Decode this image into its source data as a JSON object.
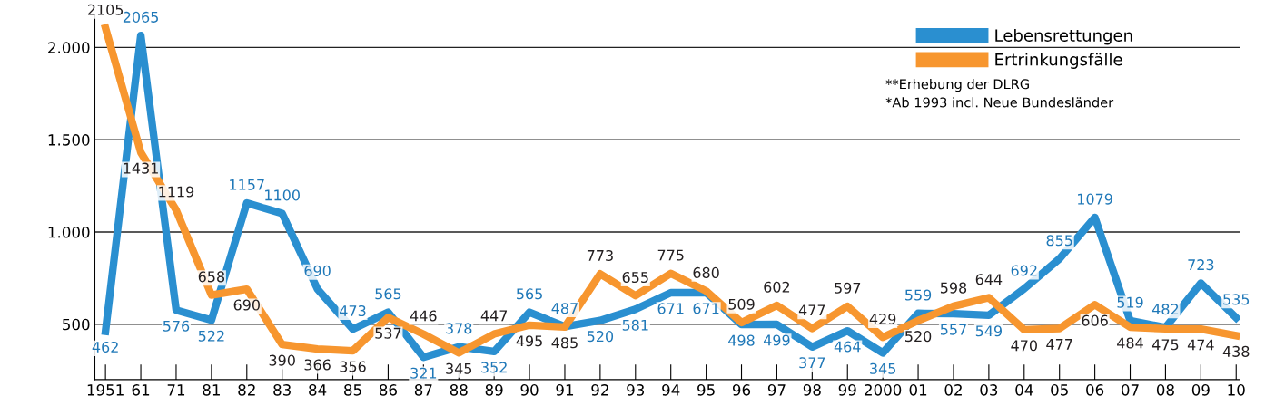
{
  "chart_data": {
    "type": "line",
    "categories": [
      "1951",
      "61",
      "71",
      "81",
      "82",
      "83",
      "84",
      "85",
      "86",
      "87",
      "88",
      "89",
      "90",
      "91",
      "92",
      "93",
      "94",
      "95",
      "96",
      "97",
      "98",
      "99",
      "2000",
      "01",
      "02",
      "03",
      "04",
      "05",
      "06",
      "07",
      "08",
      "09",
      "10"
    ],
    "series": [
      {
        "name": "Lebensrettungen",
        "color": "#2a8fd0",
        "values": [
          462,
          2065,
          576,
          522,
          1157,
          1100,
          690,
          473,
          565,
          321,
          378,
          352,
          565,
          487,
          520,
          581,
          671,
          671,
          498,
          499,
          377,
          464,
          345,
          559,
          557,
          549,
          692,
          855,
          1079,
          519,
          482,
          723,
          535
        ]
      },
      {
        "name": "Ertrinkungsfälle",
        "color": "#f7962f",
        "values": [
          2105,
          1431,
          1119,
          658,
          690,
          390,
          366,
          356,
          537,
          446,
          345,
          447,
          495,
          485,
          773,
          655,
          775,
          680,
          509,
          602,
          477,
          597,
          429,
          520,
          598,
          644,
          470,
          477,
          606,
          484,
          475,
          474,
          438
        ]
      }
    ],
    "ylim": [
      200,
      2180
    ],
    "yticks": [
      {
        "value": 500,
        "label": "500"
      },
      {
        "value": 1000,
        "label": "1.000"
      },
      {
        "value": 1500,
        "label": "1.500"
      },
      {
        "value": 2000,
        "label": "2.000"
      }
    ],
    "grid": "y",
    "legend": "top right",
    "data_labels": true,
    "marker": "none",
    "line_style": "solid",
    "annotations": [
      "**Erhebung der DLRG",
      "*Ab 1993 incl. Neue Bundesländer"
    ]
  }
}
